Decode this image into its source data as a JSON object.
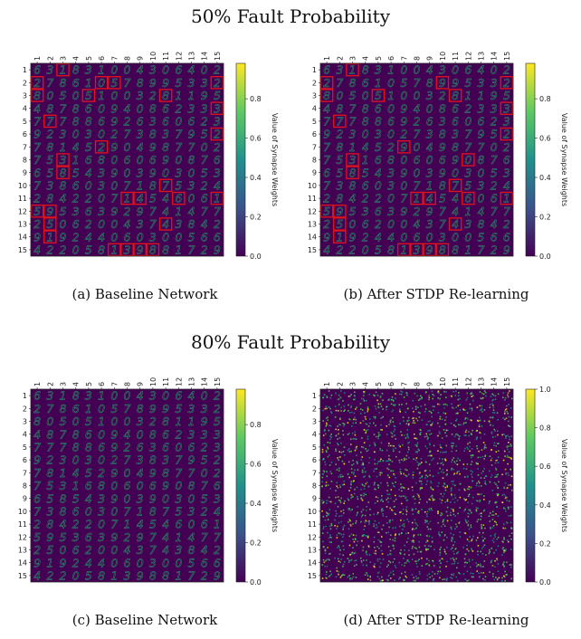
{
  "sections": [
    {
      "title": "50% Fault Probability"
    },
    {
      "title": "80% Fault Probability"
    }
  ],
  "panels": [
    {
      "caption": "(a) Baseline Network",
      "noise": 0.05,
      "red_boxes": [
        [
          1,
          3
        ],
        [
          2,
          1
        ],
        [
          2,
          6
        ],
        [
          2,
          7
        ],
        [
          2,
          15
        ],
        [
          3,
          1
        ],
        [
          3,
          5
        ],
        [
          3,
          11
        ],
        [
          4,
          15
        ],
        [
          5,
          2
        ],
        [
          6,
          15
        ],
        [
          7,
          6
        ],
        [
          8,
          3
        ],
        [
          9,
          3
        ],
        [
          10,
          11
        ],
        [
          11,
          8
        ],
        [
          11,
          9
        ],
        [
          11,
          12
        ],
        [
          11,
          15
        ],
        [
          12,
          1
        ],
        [
          12,
          2
        ],
        [
          13,
          2
        ],
        [
          13,
          11
        ],
        [
          14,
          2
        ],
        [
          15,
          7
        ],
        [
          15,
          8
        ],
        [
          15,
          9
        ],
        [
          15,
          10
        ]
      ]
    },
    {
      "caption": "(b) After STDP Re-learning",
      "noise": 0.08,
      "red_boxes": [
        [
          1,
          3
        ],
        [
          2,
          1
        ],
        [
          2,
          10
        ],
        [
          2,
          15
        ],
        [
          3,
          1
        ],
        [
          3,
          5
        ],
        [
          3,
          11
        ],
        [
          4,
          15
        ],
        [
          5,
          2
        ],
        [
          6,
          15
        ],
        [
          7,
          7
        ],
        [
          8,
          3
        ],
        [
          8,
          12
        ],
        [
          9,
          3
        ],
        [
          10,
          11
        ],
        [
          11,
          8
        ],
        [
          11,
          9
        ],
        [
          11,
          12
        ],
        [
          11,
          15
        ],
        [
          12,
          1
        ],
        [
          12,
          2
        ],
        [
          13,
          2
        ],
        [
          13,
          11
        ],
        [
          14,
          2
        ],
        [
          15,
          7
        ],
        [
          15,
          8
        ],
        [
          15,
          9
        ],
        [
          15,
          10
        ]
      ]
    },
    {
      "caption": "(c) Baseline Network",
      "noise": 0.05,
      "red_boxes": []
    },
    {
      "caption": "(d) After STDP Re-learning",
      "noise": 0.9,
      "red_boxes": []
    }
  ],
  "colorbar": {
    "label": "Value of Synapse Weights",
    "ticks_a": [
      "0.0",
      "0.2",
      "0.4",
      "0.6",
      "0.8"
    ],
    "ticks_d": [
      "0.0",
      "0.2",
      "0.4",
      "0.6",
      "0.8",
      "1.0"
    ],
    "colormap": [
      "#440154",
      "#3b528b",
      "#21918c",
      "#5ec962",
      "#fde725"
    ]
  },
  "axis_labels": [
    "1",
    "2",
    "3",
    "4",
    "5",
    "6",
    "7",
    "8",
    "9",
    "10",
    "11",
    "12",
    "13",
    "14",
    "15"
  ],
  "digits": [
    "631831004306402",
    "278610578995332",
    "805051003281195",
    "487860940862333",
    "777886926360623",
    "923030273837952",
    "781452904987702",
    "753168060690876",
    "658543903903053",
    "738603071875324",
    "284220714546061",
    "595363929741477",
    "250620043743842",
    "919244060300566",
    "422058139881729"
  ]
}
